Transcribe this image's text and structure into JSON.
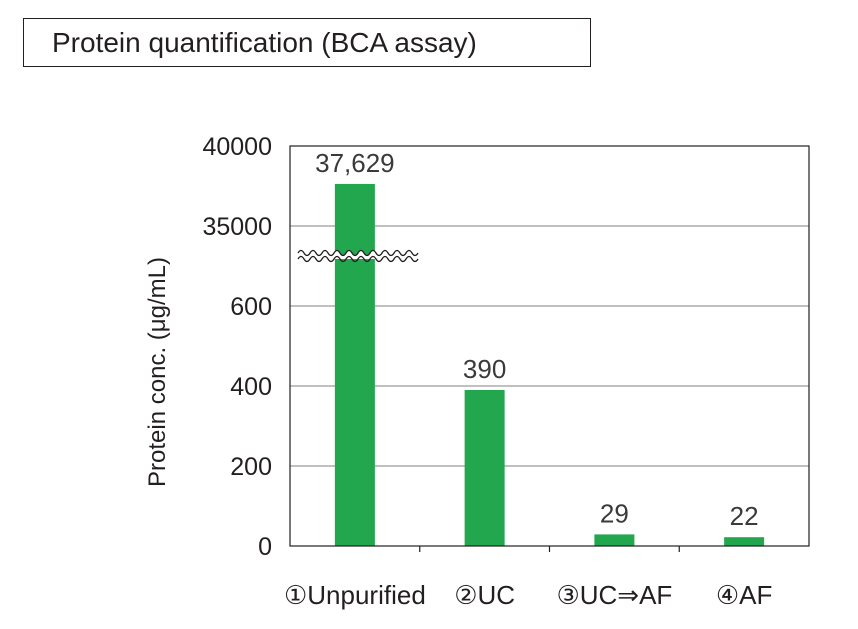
{
  "chart_data": {
    "type": "bar",
    "title": "Protein quantification (BCA assay)",
    "ylabel": "Protein conc. (μg/mL)",
    "xlabel": "",
    "categories": [
      "①Unpurified",
      "②UC",
      "③UC⇒AF",
      "④AF"
    ],
    "values": [
      37629,
      390,
      29,
      22
    ],
    "value_labels": [
      "37,629",
      "390",
      "29",
      "22"
    ],
    "y_ticks": [
      "0",
      "200",
      "400",
      "600",
      "35000",
      "40000"
    ],
    "y_axis_break": "between 600 and 35000",
    "lower_segment_ylim": [
      0,
      600
    ],
    "upper_segment_ylim": [
      35000,
      40000
    ],
    "grid": true,
    "bar_color": "#22a64e"
  }
}
